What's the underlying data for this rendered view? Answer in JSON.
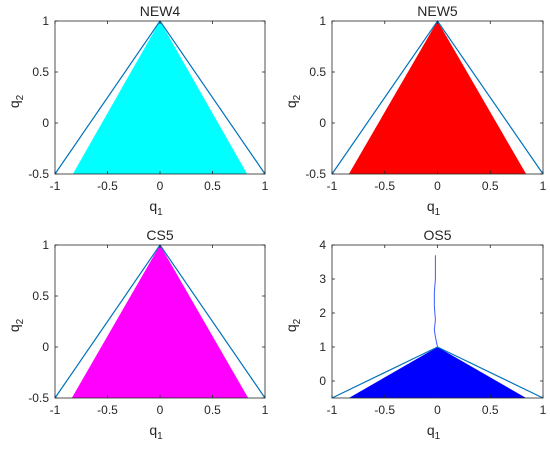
{
  "chart_data": [
    {
      "type": "area",
      "title": "NEW4",
      "xlabel": "q",
      "xlabel_sub": "1",
      "ylabel": "q",
      "ylabel_sub": "2",
      "xlim": [
        -1,
        1
      ],
      "ylim": [
        -0.5,
        1
      ],
      "xticks": [
        -1,
        -0.5,
        0,
        0.5,
        1
      ],
      "xtick_labels": [
        "-1",
        "-0.5",
        "0",
        "0.5",
        "1"
      ],
      "yticks": [
        -0.5,
        0,
        0.5,
        1
      ],
      "ytick_labels": [
        "-0.5",
        "0",
        "0.5",
        "1"
      ],
      "boundary": {
        "x": [
          -1,
          0,
          1
        ],
        "y": [
          -0.5,
          1,
          -0.5
        ]
      },
      "fill": {
        "x": [
          -0.83,
          0,
          0.83
        ],
        "y": [
          -0.5,
          1,
          -0.5
        ]
      },
      "fill_color": "#00ffff",
      "line_color": "#0072bd"
    },
    {
      "type": "area",
      "title": "NEW5",
      "xlabel": "q",
      "xlabel_sub": "1",
      "ylabel": "q",
      "ylabel_sub": "2",
      "xlim": [
        -1,
        1
      ],
      "ylim": [
        -0.5,
        1
      ],
      "xticks": [
        -1,
        -0.5,
        0,
        0.5,
        1
      ],
      "xtick_labels": [
        "-1",
        "-0.5",
        "0",
        "0.5",
        "1"
      ],
      "yticks": [
        -0.5,
        0,
        0.5,
        1
      ],
      "ytick_labels": [
        "-0.5",
        "0",
        "0.5",
        "1"
      ],
      "boundary": {
        "x": [
          -1,
          0,
          1
        ],
        "y": [
          -0.5,
          1,
          -0.5
        ]
      },
      "fill": {
        "x": [
          -0.84,
          0,
          0.84
        ],
        "y": [
          -0.5,
          1,
          -0.5
        ]
      },
      "fill_color": "#ff0000",
      "line_color": "#0072bd"
    },
    {
      "type": "area",
      "title": "CS5",
      "xlabel": "q",
      "xlabel_sub": "1",
      "ylabel": "q",
      "ylabel_sub": "2",
      "xlim": [
        -1,
        1
      ],
      "ylim": [
        -0.5,
        1
      ],
      "xticks": [
        -1,
        -0.5,
        0,
        0.5,
        1
      ],
      "xtick_labels": [
        "-1",
        "-0.5",
        "0",
        "0.5",
        "1"
      ],
      "yticks": [
        -0.5,
        0,
        0.5,
        1
      ],
      "ytick_labels": [
        "-0.5",
        "0",
        "0.5",
        "1"
      ],
      "boundary": {
        "x": [
          -1,
          0,
          1
        ],
        "y": [
          -0.5,
          1,
          -0.5
        ]
      },
      "fill": {
        "x": [
          -0.84,
          0,
          0.84
        ],
        "y": [
          -0.5,
          1,
          -0.5
        ]
      },
      "fill_color": "#ff00ff",
      "line_color": "#0072bd"
    },
    {
      "type": "area",
      "title": "OS5",
      "xlabel": "q",
      "xlabel_sub": "1",
      "ylabel": "q",
      "ylabel_sub": "2",
      "xlim": [
        -1,
        1
      ],
      "ylim": [
        -0.5,
        4
      ],
      "xticks": [
        -1,
        -0.5,
        0,
        0.5,
        1
      ],
      "xtick_labels": [
        "-1",
        "-0.5",
        "0",
        "0.5",
        "1"
      ],
      "yticks": [
        0,
        1,
        2,
        3,
        4
      ],
      "ytick_labels": [
        "0",
        "1",
        "2",
        "3",
        "4"
      ],
      "boundary": {
        "x": [
          -1,
          0,
          1
        ],
        "y": [
          -0.5,
          1,
          -0.5
        ]
      },
      "fill": {
        "x": [
          -0.84,
          0,
          0.84
        ],
        "y": [
          -0.5,
          1,
          -0.5
        ]
      },
      "trajectory": {
        "x": [
          0.0,
          -0.01,
          -0.02,
          -0.03,
          -0.02,
          -0.03,
          -0.03,
          -0.02,
          -0.02,
          -0.02,
          -0.02
        ],
        "y": [
          1.0,
          1.15,
          1.3,
          1.5,
          1.8,
          2.2,
          2.6,
          3.0,
          3.3,
          3.5,
          3.7
        ]
      },
      "fill_color": "#0000ff",
      "line_color": "#0072bd",
      "trajectory_color": "#3c5aff"
    }
  ]
}
